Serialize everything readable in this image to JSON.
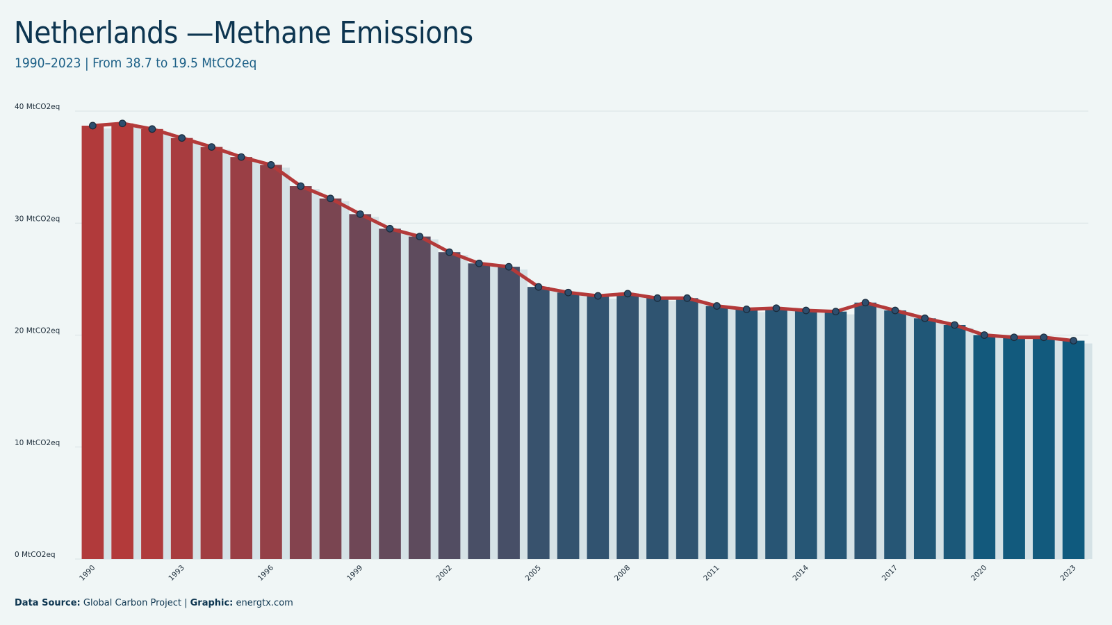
{
  "header": {
    "title": "Netherlands —Methane Emissions",
    "subtitle": "1990–2023 | From 38.7 to 19.5 MtCO2eq"
  },
  "footer": {
    "source_label": "Data Source:",
    "source_value": "Global Carbon Project",
    "separator": " | ",
    "graphic_label": "Graphic:",
    "graphic_value": "energtx.com"
  },
  "colors": {
    "background": "#f0f6f6",
    "bar_start": "#b33a3a",
    "bar_end": "#0f5a7e",
    "line": "#b33a3a",
    "marker_fill": "#2d4e6e",
    "marker_stroke": "#1a2a3a",
    "bar_shadow": "#d5e2e6",
    "grid": "#d8e2e4"
  },
  "chart_data": {
    "type": "bar",
    "title": "Netherlands —Methane Emissions",
    "subtitle": "1990–2023 | From 38.7 to 19.5 MtCO2eq",
    "xlabel": "",
    "ylabel": "",
    "ylim": [
      0,
      40
    ],
    "yticks": [
      0,
      10,
      20,
      30,
      40
    ],
    "ytick_labels": [
      "0 MtCO2eq",
      "10 MtCO2eq",
      "20 MtCO2eq",
      "30 MtCO2eq",
      "40 MtCO2eq"
    ],
    "xtick_labels": [
      "1990",
      "1993",
      "1996",
      "1999",
      "2002",
      "2005",
      "2008",
      "2011",
      "2014",
      "2017",
      "2020",
      "2023"
    ],
    "grid": true,
    "legend": "none",
    "overlay": "line with markers",
    "categories": [
      "1990",
      "1991",
      "1992",
      "1993",
      "1994",
      "1995",
      "1996",
      "1997",
      "1998",
      "1999",
      "2000",
      "2001",
      "2002",
      "2003",
      "2004",
      "2005",
      "2006",
      "2007",
      "2008",
      "2009",
      "2010",
      "2011",
      "2012",
      "2013",
      "2014",
      "2015",
      "2016",
      "2017",
      "2018",
      "2019",
      "2020",
      "2021",
      "2022",
      "2023"
    ],
    "values": [
      38.7,
      38.9,
      38.4,
      37.6,
      36.8,
      35.9,
      35.2,
      33.3,
      32.2,
      30.8,
      29.5,
      28.8,
      27.4,
      26.4,
      26.1,
      24.3,
      23.8,
      23.5,
      23.7,
      23.3,
      23.3,
      22.6,
      22.3,
      22.4,
      22.2,
      22.1,
      22.9,
      22.2,
      21.5,
      20.9,
      20.0,
      19.8,
      19.8,
      19.5
    ]
  }
}
